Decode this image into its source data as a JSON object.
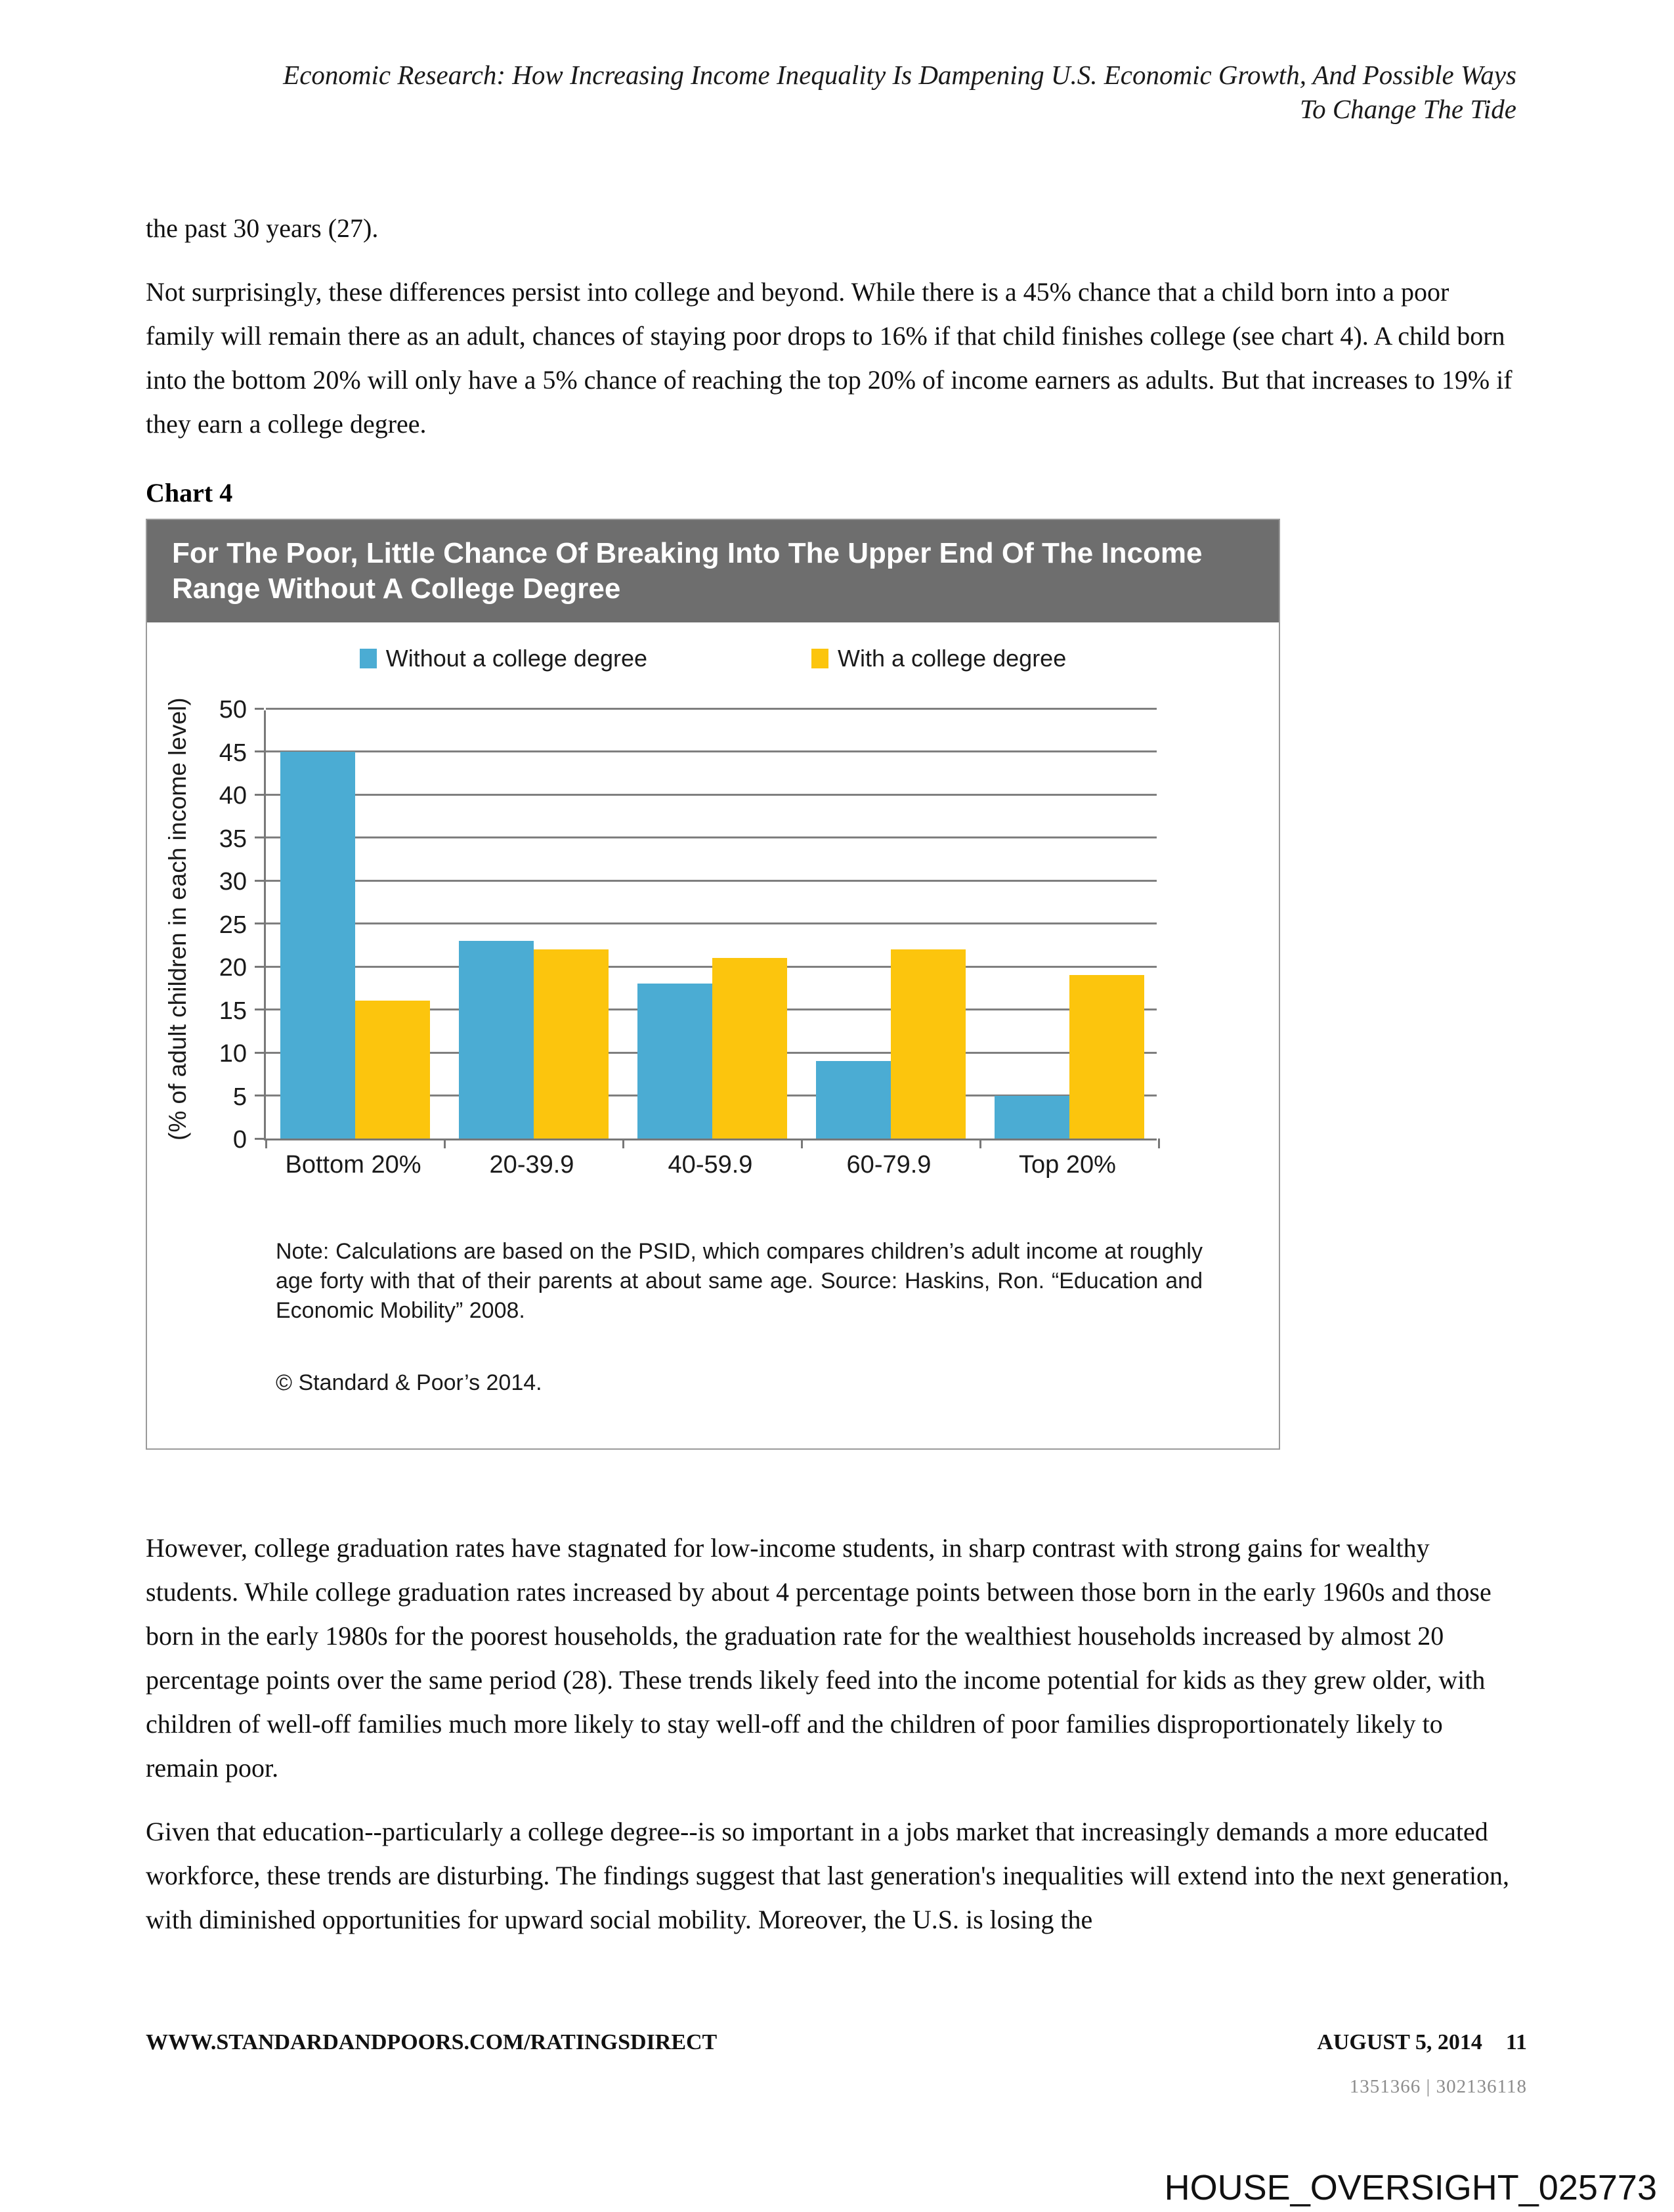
{
  "header": {
    "line1": "Economic Research: How Increasing Income Inequality Is Dampening U.S. Economic Growth, And Possible Ways",
    "line2": "To Change The Tide"
  },
  "paragraphs": {
    "p1": "the past 30 years (27).",
    "p2": "Not surprisingly, these differences persist into college and beyond. While there is a 45% chance that a child born into a poor family will remain there as an adult, chances of staying poor drops to 16% if that child finishes college (see chart 4). A child born into the bottom 20% will only have a 5% chance of reaching the top 20% of income earners as adults. But that increases to 19% if they earn a college degree.",
    "p3": "However, college graduation rates have stagnated for low-income students, in sharp contrast with strong gains for wealthy students. While college graduation rates increased by about 4 percentage points between those born in the early 1960s and those born in the early 1980s for the poorest households, the graduation rate for the wealthiest households increased by almost 20 percentage points over the same period (28). These trends likely feed into the income potential for kids as they grew older, with children of well-off families much more likely to stay well-off and the children of poor families disproportionately likely to remain poor.",
    "p4": "Given that education--particularly a college degree--is so important in a jobs market that increasingly demands a more educated workforce, these trends are disturbing. The findings suggest that last generation's inequalities will extend into the next generation, with diminished opportunities for upward social mobility. Moreover, the U.S. is losing the"
  },
  "chart_label": "Chart 4",
  "chart_data": {
    "type": "bar",
    "title": "For The Poor, Little Chance Of Breaking Into The Upper End Of The Income Range Without A College Degree",
    "title_lines": [
      "For The Poor, Little Chance Of Breaking Into The Upper End Of The Income",
      "Range Without A College Degree"
    ],
    "categories": [
      "Bottom 20%",
      "20-39.9",
      "40-59.9",
      "60-79.9",
      "Top 20%"
    ],
    "series": [
      {
        "name": "Without a college degree",
        "color": "#4BACD3",
        "values": [
          45,
          23,
          18,
          9,
          5
        ]
      },
      {
        "name": "With a college degree",
        "color": "#FCC50D",
        "values": [
          16,
          22,
          21,
          22,
          19
        ]
      }
    ],
    "xlabel": "",
    "ylabel": "(% of adult children in each income level)",
    "ylim": [
      0,
      50
    ],
    "ystep": 5,
    "grid": true,
    "legend_position": "top",
    "note": "Note: Calculations are based on the PSID, which compares children’s adult income at roughly age forty with that of their parents at about same age. Source: Haskins, Ron. “Education and Economic Mobility” 2008.",
    "copyright": "© Standard & Poor’s 2014."
  },
  "footer": {
    "website": "WWW.STANDARDANDPOORS.COM/RATINGSDIRECT",
    "date": "AUGUST 5, 2014",
    "page_number": "11",
    "doc_id": "1351366 | 302136118",
    "watermark": "HOUSE_OVERSIGHT_025773"
  }
}
